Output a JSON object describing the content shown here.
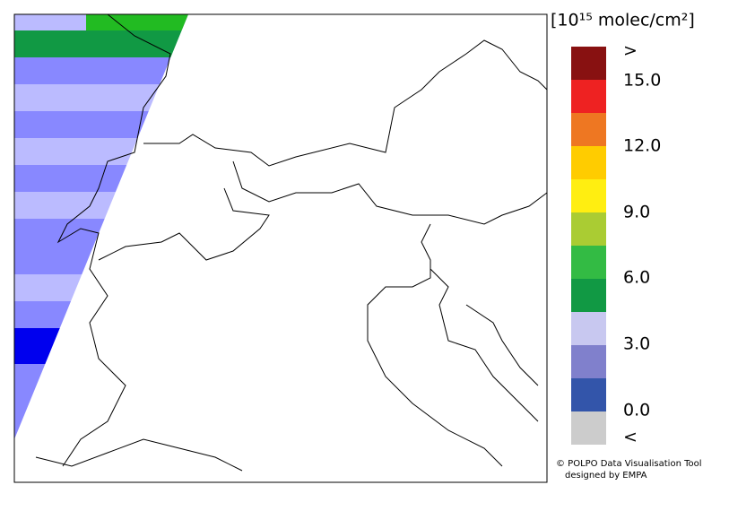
{
  "legend": {
    "title": "[10¹⁵ molec/cm²]",
    "labels": [
      ">",
      "15.0",
      "12.0",
      "9.0",
      "6.0",
      "3.0",
      "0.0",
      "<"
    ]
  },
  "credit": [
    "© POLPO Data Visualisation Tool",
    "designed by EMPA"
  ]
}
